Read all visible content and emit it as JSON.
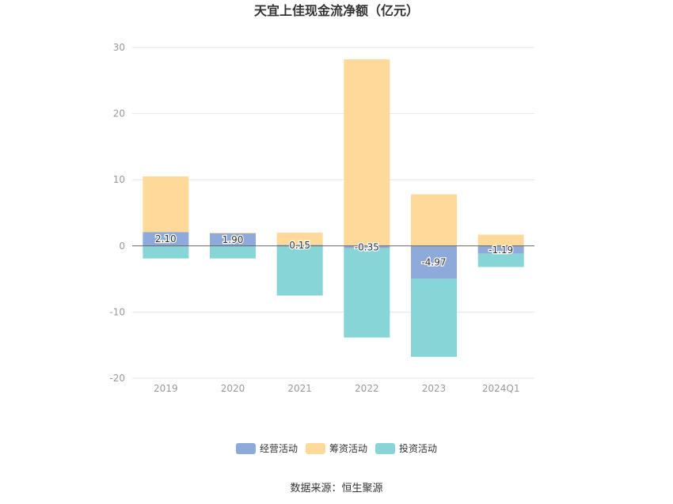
{
  "chart_data": {
    "type": "bar",
    "stacked": true,
    "title": "天宜上佳现金流净额（亿元）",
    "categories": [
      "2019",
      "2020",
      "2021",
      "2022",
      "2023",
      "2024Q1"
    ],
    "ylim": [
      -20,
      30
    ],
    "yticks": [
      "30",
      "20",
      "10",
      "0",
      "-10",
      "-20"
    ],
    "grid": true,
    "legend_position": "bottom",
    "series": [
      {
        "name": "经营活动",
        "color": "#8eaadb",
        "values": [
          2.1,
          1.9,
          0.15,
          -0.35,
          -4.97,
          -1.19
        ],
        "labels": [
          "2.10",
          "1.90",
          "0.15",
          "-0.35",
          "-4.97",
          "-1.19"
        ]
      },
      {
        "name": "筹资活动",
        "color": "#ffd99a",
        "values": [
          8.4,
          0.1,
          1.85,
          28.2,
          7.8,
          1.7
        ]
      },
      {
        "name": "投资活动",
        "color": "#88d5d8",
        "values": [
          -1.9,
          -1.9,
          -7.5,
          -13.5,
          -11.8,
          -2.0
        ]
      }
    ],
    "source": "数据来源：恒生聚源"
  }
}
